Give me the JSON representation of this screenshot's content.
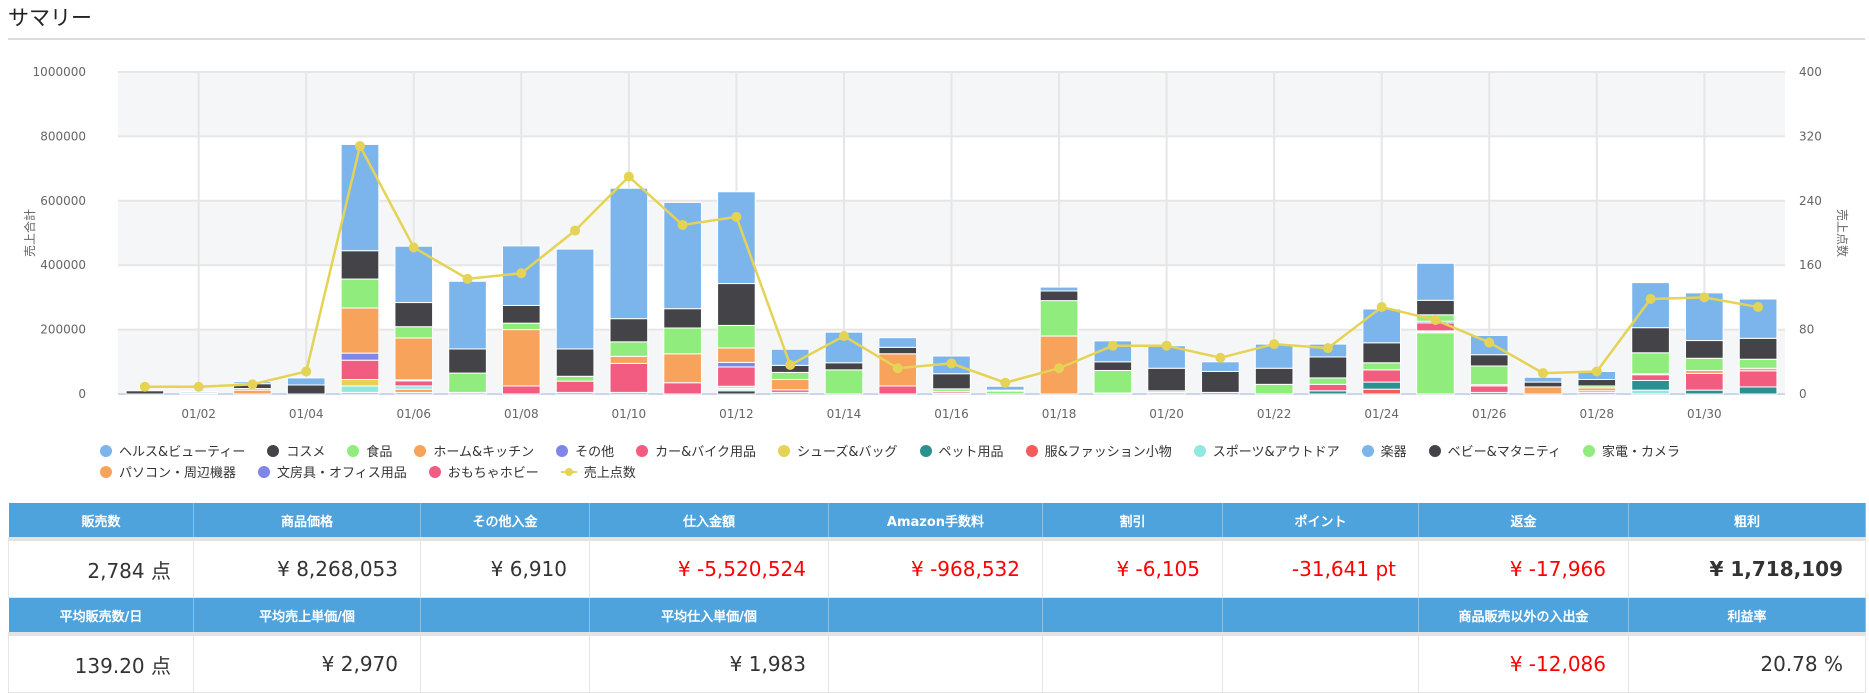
{
  "page": {
    "title": "サマリー"
  },
  "chart_data": {
    "type": "bar",
    "stacked": true,
    "title": "",
    "xlabel": "",
    "ylabel": "売上合計",
    "y2label": "売上点数",
    "ylim": [
      0,
      1000000
    ],
    "y2lim": [
      0,
      400
    ],
    "yticks": [
      "0",
      "200000",
      "400000",
      "600000",
      "800000",
      "1000000"
    ],
    "y2ticks": [
      "0",
      "80",
      "160",
      "240",
      "320",
      "400"
    ],
    "categories": [
      "01/01",
      "01/02",
      "01/03",
      "01/04",
      "01/05",
      "01/06",
      "01/07",
      "01/08",
      "01/09",
      "01/10",
      "01/11",
      "01/12",
      "01/13",
      "01/14",
      "01/15",
      "01/16",
      "01/17",
      "01/18",
      "01/19",
      "01/20",
      "01/21",
      "01/22",
      "01/23",
      "01/24",
      "01/25",
      "01/26",
      "01/27",
      "01/28",
      "01/29",
      "01/30",
      "01/31"
    ],
    "xtick_labels": [
      "01/02",
      "01/04",
      "01/06",
      "01/08",
      "01/10",
      "01/12",
      "01/14",
      "01/16",
      "01/18",
      "01/20",
      "01/22",
      "01/24",
      "01/26",
      "01/28",
      "01/30"
    ],
    "legend_position": "bottom",
    "series": [
      {
        "name": "ヘルス&ビューティー",
        "color": "#7cb5ec",
        "values": [
          0,
          4000,
          6000,
          22000,
          330000,
          175000,
          210000,
          185000,
          310000,
          405000,
          330000,
          285000,
          50000,
          95000,
          30000,
          55000,
          12000,
          12000,
          65000,
          70000,
          30000,
          75000,
          40000,
          105000,
          115000,
          60000,
          15000,
          25000,
          140000,
          148000,
          122000
        ]
      },
      {
        "name": "コスメ",
        "color": "#434348",
        "values": [
          10000,
          3000,
          15000,
          28000,
          88000,
          75000,
          75000,
          55000,
          85000,
          72000,
          60000,
          130000,
          22000,
          22000,
          20000,
          47000,
          2000,
          30000,
          27000,
          70000,
          65000,
          50000,
          65000,
          62000,
          45000,
          35000,
          15000,
          20000,
          78000,
          55000,
          65000
        ]
      },
      {
        "name": "食品",
        "color": "#90ed7d",
        "values": [
          0,
          0,
          0,
          0,
          90000,
          35000,
          60000,
          20000,
          15000,
          45000,
          80000,
          70000,
          22000,
          75000,
          0,
          8000,
          10000,
          110000,
          70000,
          5000,
          0,
          30000,
          20000,
          22000,
          20000,
          58000,
          0,
          6000,
          65000,
          38000,
          28000
        ]
      },
      {
        "name": "ホーム&キッチン",
        "color": "#f7a35c",
        "values": [
          0,
          0,
          5000,
          0,
          140000,
          130000,
          5000,
          175000,
          0,
          22000,
          90000,
          45000,
          32000,
          0,
          100000,
          0,
          0,
          180000,
          3000,
          5000,
          0,
          0,
          0,
          0,
          0,
          4000,
          22000,
          9000,
          3000,
          9000,
          8000
        ]
      },
      {
        "name": "その他",
        "color": "#8085e9",
        "values": [
          0,
          0,
          0,
          0,
          22000,
          3000,
          0,
          0,
          0,
          0,
          0,
          14000,
          0,
          0,
          0,
          0,
          0,
          0,
          0,
          0,
          0,
          0,
          0,
          0,
          5000,
          0,
          0,
          0,
          0,
          0,
          0
        ]
      },
      {
        "name": "カー&バイク用品",
        "color": "#f15c80",
        "values": [
          0,
          0,
          0,
          0,
          60000,
          16000,
          0,
          25000,
          35000,
          90000,
          35000,
          60000,
          8000,
          0,
          25000,
          5000,
          0,
          0,
          0,
          0,
          0,
          0,
          20000,
          38000,
          25000,
          20000,
          0,
          5000,
          18000,
          52000,
          50000
        ]
      },
      {
        "name": "シューズ&バッグ",
        "color": "#e4d354",
        "values": [
          0,
          0,
          0,
          0,
          20000,
          0,
          0,
          0,
          0,
          0,
          0,
          6000,
          0,
          0,
          0,
          0,
          0,
          0,
          0,
          0,
          0,
          0,
          0,
          0,
          3000,
          0,
          0,
          0,
          0,
          0,
          0
        ]
      },
      {
        "name": "ペット用品",
        "color": "#2b908f",
        "values": [
          0,
          0,
          0,
          0,
          0,
          0,
          0,
          0,
          0,
          0,
          0,
          3000,
          0,
          0,
          0,
          0,
          0,
          0,
          0,
          0,
          5000,
          0,
          10000,
          22000,
          3000,
          0,
          0,
          0,
          30000,
          12000,
          22000
        ]
      },
      {
        "name": "服&ファッション小物",
        "color": "#f45b5b",
        "values": [
          0,
          0,
          0,
          0,
          0,
          0,
          0,
          0,
          0,
          0,
          0,
          0,
          0,
          0,
          0,
          0,
          0,
          0,
          0,
          0,
          0,
          0,
          0,
          15000,
          0,
          0,
          0,
          5000,
          0,
          0,
          0
        ]
      },
      {
        "name": "スポーツ&アウトドア",
        "color": "#91e8e1",
        "values": [
          0,
          0,
          0,
          0,
          20000,
          10000,
          0,
          0,
          0,
          0,
          0,
          5000,
          0,
          0,
          0,
          0,
          0,
          0,
          0,
          0,
          0,
          0,
          0,
          0,
          0,
          0,
          0,
          0,
          12000,
          0,
          0
        ]
      },
      {
        "name": "楽器",
        "color": "#7cb5ec",
        "values": [
          0,
          0,
          0,
          0,
          0,
          0,
          0,
          0,
          0,
          0,
          0,
          0,
          0,
          0,
          0,
          0,
          0,
          0,
          0,
          0,
          0,
          0,
          0,
          0,
          0,
          0,
          0,
          0,
          0,
          0,
          0
        ]
      },
      {
        "name": "ベビー&マタニティ",
        "color": "#434348",
        "values": [
          0,
          0,
          0,
          0,
          0,
          0,
          0,
          0,
          0,
          0,
          0,
          10000,
          0,
          0,
          0,
          0,
          0,
          0,
          0,
          0,
          0,
          0,
          0,
          0,
          0,
          5000,
          0,
          0,
          0,
          0,
          0
        ]
      },
      {
        "name": "家電・カメラ",
        "color": "#90ed7d",
        "values": [
          0,
          0,
          0,
          0,
          0,
          0,
          0,
          0,
          0,
          0,
          0,
          0,
          0,
          0,
          0,
          0,
          0,
          0,
          0,
          0,
          0,
          0,
          0,
          0,
          190000,
          0,
          0,
          0,
          0,
          0,
          0
        ]
      },
      {
        "name": "パソコン・周辺機器",
        "color": "#f7a35c",
        "values": [
          0,
          0,
          12000,
          0,
          0,
          10000,
          0,
          0,
          0,
          0,
          0,
          0,
          0,
          0,
          0,
          0,
          0,
          0,
          0,
          0,
          0,
          0,
          0,
          0,
          0,
          0,
          0,
          0,
          0,
          0,
          0
        ]
      },
      {
        "name": "文房具・オフィス用品",
        "color": "#8085e9",
        "values": [
          0,
          0,
          0,
          0,
          5000,
          5000,
          0,
          0,
          0,
          0,
          0,
          0,
          0,
          0,
          0,
          0,
          0,
          0,
          0,
          0,
          0,
          0,
          0,
          0,
          0,
          0,
          0,
          0,
          0,
          0,
          0
        ]
      },
      {
        "name": "おもちゃホビー",
        "color": "#f15c80",
        "values": [
          0,
          0,
          0,
          0,
          0,
          0,
          0,
          0,
          5000,
          5000,
          0,
          0,
          5000,
          0,
          0,
          3000,
          0,
          0,
          0,
          0,
          0,
          0,
          0,
          0,
          0,
          0,
          0,
          0,
          0,
          0,
          0
        ]
      }
    ],
    "line_series": {
      "name": "売上点数",
      "color": "#e4d354",
      "axis": "right",
      "values": [
        9,
        9,
        12,
        28,
        308,
        182,
        143,
        150,
        203,
        270,
        210,
        220,
        36,
        72,
        32,
        38,
        14,
        32,
        60,
        60,
        45,
        62,
        57,
        108,
        92,
        64,
        26,
        28,
        118,
        120,
        108
      ]
    }
  },
  "summary": {
    "row1_headers": [
      "販売数",
      "商品価格",
      "その他入金",
      "仕入金額",
      "Amazon手数料",
      "割引",
      "ポイント",
      "返金",
      "粗利"
    ],
    "row1_values": [
      {
        "text": "2,784 点",
        "negative": false,
        "bold": false
      },
      {
        "text": "¥ 8,268,053",
        "negative": false,
        "bold": false
      },
      {
        "text": "¥ 6,910",
        "negative": false,
        "bold": false
      },
      {
        "text": "¥ -5,520,524",
        "negative": true,
        "bold": false
      },
      {
        "text": "¥ -968,532",
        "negative": true,
        "bold": false
      },
      {
        "text": "¥ -6,105",
        "negative": true,
        "bold": false
      },
      {
        "text": "-31,641 pt",
        "negative": true,
        "bold": false
      },
      {
        "text": "¥ -17,966",
        "negative": true,
        "bold": false
      },
      {
        "text": "¥ 1,718,109",
        "negative": false,
        "bold": true
      }
    ],
    "row2_headers": [
      "平均販売数/日",
      "平均売上単価/個",
      "",
      "平均仕入単価/個",
      "",
      "",
      "",
      "商品販売以外の入出金",
      "利益率"
    ],
    "row2_values": [
      {
        "text": "139.20 点",
        "negative": false,
        "bold": false
      },
      {
        "text": "¥ 2,970",
        "negative": false,
        "bold": false
      },
      {
        "text": "",
        "negative": false,
        "bold": false
      },
      {
        "text": "¥ 1,983",
        "negative": false,
        "bold": false
      },
      {
        "text": "",
        "negative": false,
        "bold": false
      },
      {
        "text": "",
        "negative": false,
        "bold": false
      },
      {
        "text": "",
        "negative": false,
        "bold": false
      },
      {
        "text": "¥ -12,086",
        "negative": true,
        "bold": false
      },
      {
        "text": "20.78 %",
        "negative": false,
        "bold": false
      }
    ]
  }
}
